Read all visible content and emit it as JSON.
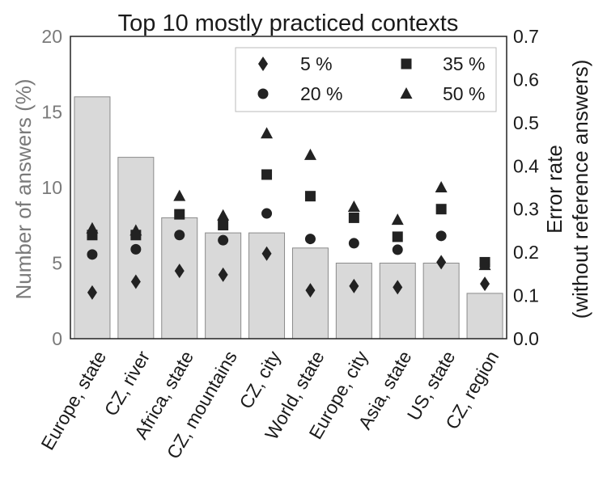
{
  "chart_data": {
    "type": "bar",
    "title": "Top 10 mostly practiced contexts",
    "categories": [
      "Europe, state",
      "CZ, river",
      "Africa, state",
      "CZ, mountains",
      "CZ, city",
      "World, state",
      "Europe, city",
      "Asia, state",
      "US, state",
      "CZ, region"
    ],
    "bars": {
      "ylabel": "Number of answers (%)",
      "ylim": [
        0,
        20
      ],
      "yticks": [
        0,
        5,
        10,
        15,
        20
      ],
      "values": [
        16,
        12,
        8,
        7,
        7,
        6,
        5,
        5,
        5,
        3
      ],
      "color": "#d9d9d9"
    },
    "error_rate": {
      "ylabel_line1": "Error rate",
      "ylabel_line2": "(without reference answers)",
      "ylim": [
        0.0,
        0.7
      ],
      "yticks": [
        "0.0",
        "0.1",
        "0.2",
        "0.3",
        "0.4",
        "0.5",
        "0.6",
        "0.7"
      ],
      "series": [
        {
          "name": "5 %",
          "marker": "diamond",
          "values": [
            0.107,
            0.132,
            0.157,
            0.148,
            0.197,
            0.112,
            0.122,
            0.119,
            0.177,
            0.127
          ]
        },
        {
          "name": "20 %",
          "marker": "circle",
          "values": [
            0.195,
            0.207,
            0.24,
            0.228,
            0.29,
            0.231,
            0.221,
            0.206,
            0.238,
            0.172
          ]
        },
        {
          "name": "35 %",
          "marker": "square",
          "values": [
            0.24,
            0.24,
            0.288,
            0.263,
            0.38,
            0.33,
            0.28,
            0.236,
            0.3,
            0.177
          ]
        },
        {
          "name": "50 %",
          "marker": "triangle",
          "values": [
            0.255,
            0.25,
            0.33,
            0.285,
            0.475,
            0.425,
            0.305,
            0.275,
            0.35,
            0.17
          ]
        }
      ]
    },
    "legend": {
      "position": "top-right",
      "columns": 2,
      "order": [
        "5 %",
        "35 %",
        "20 %",
        "50 %"
      ]
    },
    "grid": false,
    "marker_color": "#222222"
  }
}
